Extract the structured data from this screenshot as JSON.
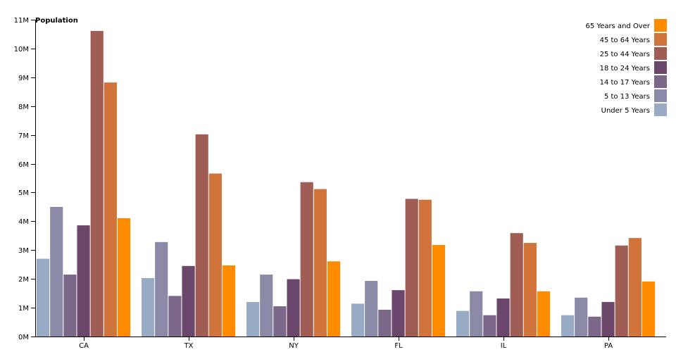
{
  "chart_data": {
    "type": "bar",
    "ylabel": "Population",
    "ylim": [
      0,
      11000000
    ],
    "yticks": [
      "0M",
      "1M",
      "2M",
      "3M",
      "4M",
      "5M",
      "6M",
      "7M",
      "8M",
      "9M",
      "10M",
      "11M"
    ],
    "legend_position": "top-right",
    "categories": [
      "CA",
      "TX",
      "NY",
      "FL",
      "IL",
      "PA"
    ],
    "series": [
      {
        "name": "Under 5 Years",
        "color": "#98abc5",
        "values": [
          2700000,
          2030000,
          1200000,
          1140000,
          890000,
          740000
        ]
      },
      {
        "name": "5 to 13 Years",
        "color": "#8a89a6",
        "values": [
          4500000,
          3280000,
          2150000,
          1930000,
          1570000,
          1350000
        ]
      },
      {
        "name": "14 to 17 Years",
        "color": "#7b6888",
        "values": [
          2150000,
          1410000,
          1050000,
          930000,
          740000,
          690000
        ]
      },
      {
        "name": "18 to 24 Years",
        "color": "#6b486b",
        "values": [
          3860000,
          2450000,
          1990000,
          1610000,
          1320000,
          1200000
        ]
      },
      {
        "name": "25 to 44 Years",
        "color": "#a05d56",
        "values": [
          10610000,
          7020000,
          5360000,
          4780000,
          3590000,
          3160000
        ]
      },
      {
        "name": "45 to 64 Years",
        "color": "#d0743c",
        "values": [
          8820000,
          5660000,
          5120000,
          4750000,
          3250000,
          3420000
        ]
      },
      {
        "name": "65 Years and Over",
        "color": "#ff8c00",
        "values": [
          4110000,
          2470000,
          2610000,
          3180000,
          1570000,
          1910000
        ]
      }
    ]
  }
}
